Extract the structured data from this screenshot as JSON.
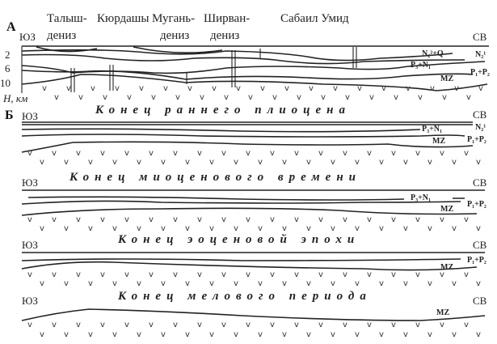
{
  "panel_a": {
    "letter": "А",
    "places": [
      {
        "line1": "Талыш-",
        "line2": "дениз"
      },
      {
        "line1": "Кюрдашы",
        "line2": ""
      },
      {
        "line1": "Мугань-",
        "line2": "дениз"
      },
      {
        "line1": "Ширван-",
        "line2": "дениз"
      },
      {
        "line1": "Сабаил Умид",
        "line2": ""
      }
    ],
    "left": "ЮЗ",
    "right": "СВ",
    "depth_ticks": [
      "2",
      "6",
      "10"
    ],
    "depth_axis": "H, км",
    "labels": [
      "N₂²+Q",
      "N₂¹",
      "P₃+N₁",
      "P₁+P₂",
      "MZ"
    ]
  },
  "panel_b": {
    "letter": "Б",
    "sections": [
      {
        "title": "Конец раннего плиоцена",
        "left": "ЮЗ",
        "right": "СВ",
        "labels": [
          "N₂¹",
          "P₃+N₁",
          "P₁+P₂",
          "MZ"
        ]
      },
      {
        "title": "Конец миоценового времени",
        "left": "ЮЗ",
        "right": "СВ",
        "labels": [
          "P₃+N₁",
          "P₁+P₂",
          "MZ"
        ]
      },
      {
        "title": "Конец эоценовой эпохи",
        "left": "ЮЗ",
        "right": "СВ",
        "labels": [
          "P₁+P₂",
          "MZ"
        ]
      },
      {
        "title": "Конец мелового периода",
        "left": "ЮЗ",
        "right": "СВ",
        "labels": [
          "MZ"
        ]
      }
    ]
  }
}
